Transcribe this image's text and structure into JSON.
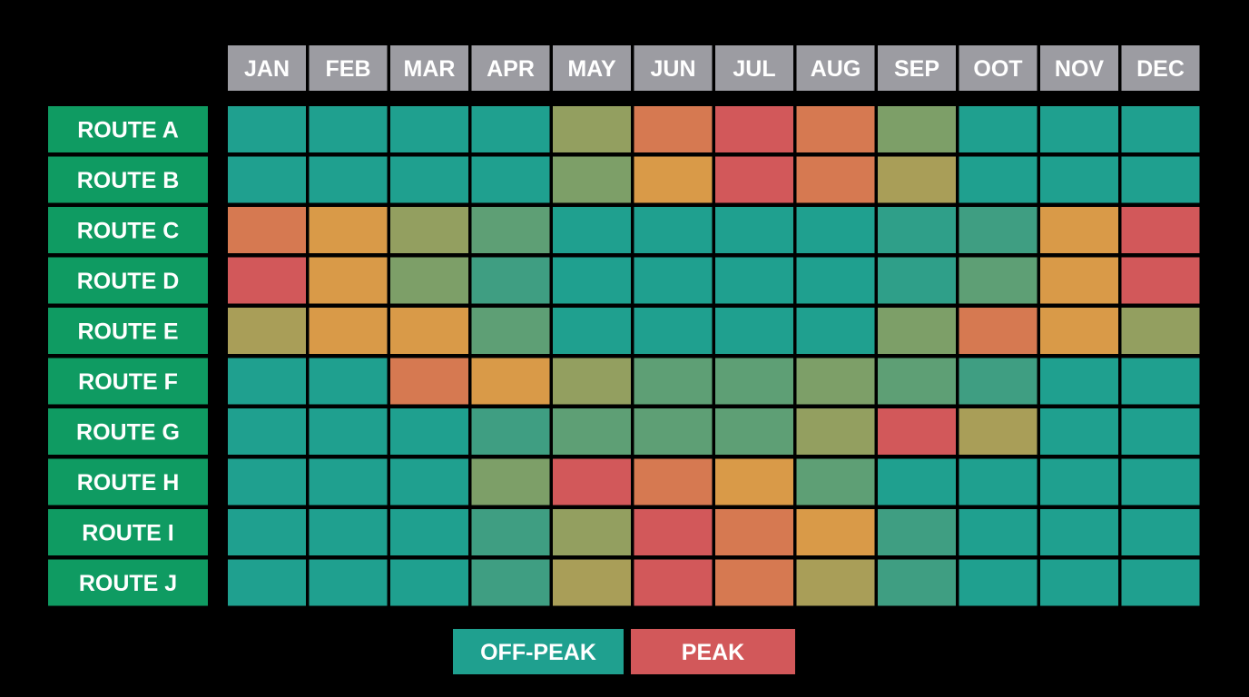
{
  "chart_data": {
    "type": "heatmap",
    "x_categories": [
      "JAN",
      "FEB",
      "MAR",
      "APR",
      "MAY",
      "JUN",
      "JUL",
      "AUG",
      "SEP",
      "OOT",
      "NOV",
      "DEC"
    ],
    "y_categories": [
      "ROUTE A",
      "ROUTE B",
      "ROUTE C",
      "ROUTE D",
      "ROUTE E",
      "ROUTE F",
      "ROUTE G",
      "ROUTE H",
      "ROUTE I",
      "ROUTE J"
    ],
    "values": [
      [
        0,
        0,
        0,
        0,
        2.5,
        4.5,
        5,
        4.5,
        2,
        0,
        0,
        0
      ],
      [
        0,
        0,
        0,
        0,
        2,
        4,
        5,
        4.5,
        3,
        0,
        0,
        0
      ],
      [
        4.5,
        4,
        2.5,
        1.5,
        0,
        0,
        0,
        0,
        0.5,
        1,
        4,
        5
      ],
      [
        5,
        4,
        2,
        1,
        0,
        0,
        0,
        0,
        0.5,
        1.5,
        4,
        5
      ],
      [
        3,
        4,
        4,
        1.5,
        0,
        0,
        0,
        0,
        2,
        4.5,
        4,
        2.5
      ],
      [
        0,
        0,
        4.5,
        4,
        2.5,
        1.5,
        1.5,
        2,
        1.5,
        1,
        0,
        0
      ],
      [
        0,
        0,
        0,
        1,
        1.5,
        1.5,
        1.5,
        2.5,
        5,
        3,
        0,
        0
      ],
      [
        0,
        0,
        0,
        2,
        5,
        4.5,
        4,
        1.5,
        0,
        0,
        0,
        0
      ],
      [
        0,
        0,
        0,
        1,
        2.5,
        5,
        4.5,
        4,
        1,
        0,
        0,
        0
      ],
      [
        0,
        0,
        0,
        1,
        3,
        5,
        4.5,
        3,
        1,
        0,
        0,
        0
      ]
    ],
    "zlim": [
      0,
      5
    ],
    "colorscale": [
      "#1fa08f",
      "#3f9e82",
      "#7d9f68",
      "#a99e58",
      "#d99a48",
      "#d2585a"
    ],
    "legend": [
      {
        "name": "OFF-PEAK",
        "color": "#1fa08f"
      },
      {
        "name": "PEAK",
        "color": "#d2585a"
      }
    ],
    "header_color": "#9c9ca2",
    "row_label_color": "#0f9b62"
  }
}
